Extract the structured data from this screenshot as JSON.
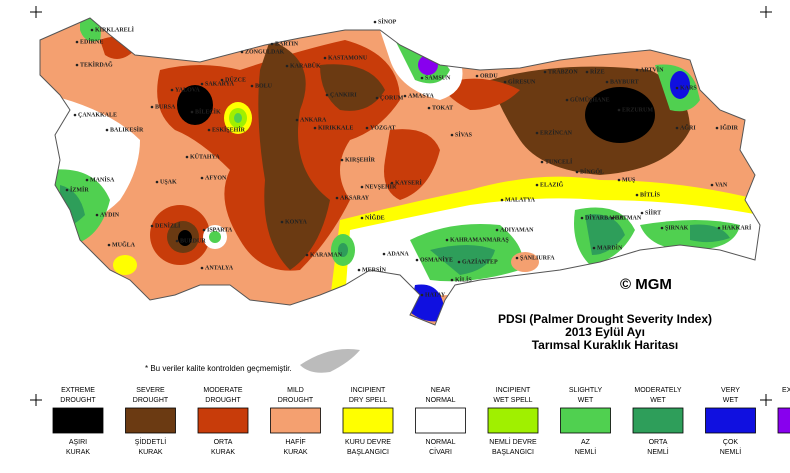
{
  "title": [
    "PDSI (Palmer Drought Severity Index)",
    "2013 Eylül Ayı",
    "Tarımsal Kuraklık Haritası"
  ],
  "note": "* Bu veriler kalite kontrolden geçmemiştir.",
  "credit": "© MGM",
  "cities": [
    "KIRKLARELİ",
    "EDİRNE",
    "TEKİRDAĞ",
    "ÇANAKKALE",
    "BALIKESİR",
    "BURSA",
    "YALOVA",
    "SAKARYA",
    "DÜZCE",
    "BOLU",
    "ZONGULDAK",
    "BARTIN",
    "KARABÜK",
    "KASTAMONU",
    "SİNOP",
    "SAMSUN",
    "ORDU",
    "GİRESUN",
    "TRABZON",
    "RİZE",
    "ARTVİN",
    "BAYBURT",
    "KARS",
    "AMASYA",
    "ÇORUM",
    "ÇANKIRI",
    "TOKAT",
    "GÜMÜŞHANE",
    "ERZURUM",
    "ERZİNCAN",
    "AĞRI",
    "IĞDIR",
    "SİVAS",
    "ANKARA",
    "KIRIKKALE",
    "YOZGAT",
    "BİLECİK",
    "ESKİŞEHİR",
    "KÜTAHYA",
    "KIRŞEHİR",
    "TUNCELİ",
    "BİNGÖL",
    "MUŞ",
    "VAN",
    "BİTLİS",
    "ELAZIĞ",
    "NEVŞEHİR",
    "KAYSERİ",
    "AKSARAY",
    "MALATYA",
    "ADIYAMAN",
    "SİİRT",
    "BATMAN",
    "DİYARBAKIR",
    "HAKKARİ",
    "ŞIRNAK",
    "MARDİN",
    "ŞANLIURFA",
    "GAZİANTEP",
    "KAHRAMANMARAŞ",
    "OSMANİYE",
    "ADANA",
    "HATAY",
    "KİLİS",
    "MERSİN",
    "NİĞDE",
    "KONYA",
    "KARAMAN",
    "ANTALYA",
    "ISPARTA",
    "BURDUR",
    "AFYON",
    "UŞAK",
    "MANİSA",
    "İZMİR",
    "AYDIN",
    "DENİZLİ",
    "MUĞLA"
  ],
  "legend": [
    {
      "label_en": [
        "EXTREME",
        "DROUGHT"
      ],
      "label_tr": [
        "AŞIRI",
        "KURAK"
      ],
      "color": "#000000"
    },
    {
      "label_en": [
        "SEVERE",
        "DROUGHT"
      ],
      "label_tr": [
        "ŞİDDETLİ",
        "KURAK"
      ],
      "color": "#6b3a12"
    },
    {
      "label_en": [
        "MODERATE",
        "DROUGHT"
      ],
      "label_tr": [
        "ORTA",
        "KURAK"
      ],
      "color": "#c83c0a"
    },
    {
      "label_en": [
        "MILD",
        "DROUGHT"
      ],
      "label_tr": [
        "HAFİF",
        "KURAK"
      ],
      "color": "#f4a070"
    },
    {
      "label_en": [
        "INCIPIENT",
        "DRY SPELL"
      ],
      "label_tr": [
        "KURU DEVRE",
        "BAŞLANGICI"
      ],
      "color": "#ffff00"
    },
    {
      "label_en": [
        "NEAR",
        "NORMAL"
      ],
      "label_tr": [
        "NORMAL",
        "CİVARI"
      ],
      "color": "#ffffff"
    },
    {
      "label_en": [
        "INCIPIENT",
        "WET SPELL"
      ],
      "label_tr": [
        "NEMLİ DEVRE",
        "BAŞLANGICI"
      ],
      "color": "#a0f000"
    },
    {
      "label_en": [
        "SLIGHTLY",
        "WET"
      ],
      "label_tr": [
        "AZ",
        "NEMLİ"
      ],
      "color": "#50d050"
    },
    {
      "label_en": [
        "MODERATELY",
        "WET"
      ],
      "label_tr": [
        "ORTA",
        "NEMLİ"
      ],
      "color": "#2e9e5a"
    },
    {
      "label_en": [
        "VERY",
        "WET"
      ],
      "label_tr": [
        "ÇOK",
        "NEMLİ"
      ],
      "color": "#1010e0"
    },
    {
      "label_en": [
        "EXTREMELY",
        "WET"
      ],
      "label_tr": [
        "AŞIRI",
        "NEMLİ"
      ],
      "color": "#8800ee"
    }
  ]
}
